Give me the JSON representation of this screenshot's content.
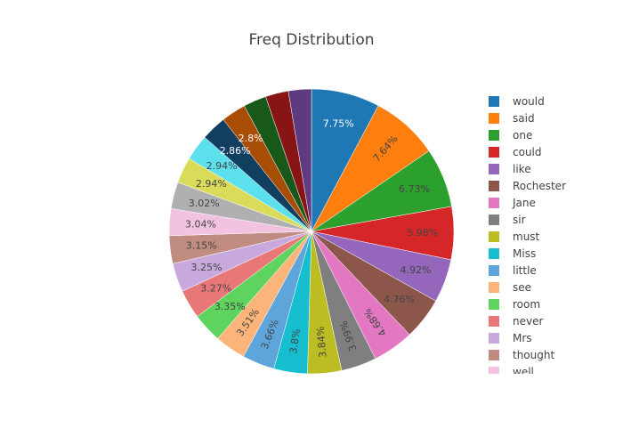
{
  "chart_data": {
    "type": "pie",
    "title": "Freq Distribution",
    "sort": "descending, clockwise from 12 o'clock",
    "legend_position": "right (scrollable, clipped)",
    "slices": [
      {
        "label": "would",
        "percent_text": "7.75%",
        "color": "#1f77b4"
      },
      {
        "label": "said",
        "percent_text": "7.64%",
        "color": "#ff7f0e"
      },
      {
        "label": "one",
        "percent_text": "6.73%",
        "color": "#2ca02c"
      },
      {
        "label": "could",
        "percent_text": "5.98%",
        "color": "#d62728"
      },
      {
        "label": "like",
        "percent_text": "4.92%",
        "color": "#9467bd"
      },
      {
        "label": "Rochester",
        "percent_text": "4.76%",
        "color": "#8c564b"
      },
      {
        "label": "Jane",
        "percent_text": "4.68%",
        "color": "#e377c2"
      },
      {
        "label": "sir",
        "percent_text": "3.99%",
        "color": "#7f7f7f"
      },
      {
        "label": "must",
        "percent_text": "3.84%",
        "color": "#bcbd22"
      },
      {
        "label": "Miss",
        "percent_text": "3.8%",
        "color": "#17becf"
      },
      {
        "label": "little",
        "percent_text": "3.66%",
        "color": "#5da5da"
      },
      {
        "label": "see",
        "percent_text": "3.51%",
        "color": "#fdb47a"
      },
      {
        "label": "room",
        "percent_text": "3.35%",
        "color": "#5ed35e"
      },
      {
        "label": "never",
        "percent_text": "3.27%",
        "color": "#e87878"
      },
      {
        "label": "Mrs",
        "percent_text": "3.25%",
        "color": "#c7a9dd"
      },
      {
        "label": "thought",
        "percent_text": "3.15%",
        "color": "#c08b80"
      },
      {
        "label": "well",
        "percent_text": "3.04%",
        "color": "#f2c2e1"
      },
      {
        "label": "",
        "percent_text": "3.02%",
        "color": "#b0b0b0"
      },
      {
        "label": "",
        "percent_text": "2.94%",
        "color": "#dbdb5a"
      },
      {
        "label": "",
        "percent_text": "2.94%",
        "color": "#5ce0ee"
      },
      {
        "label": "",
        "percent_text": "2.86%",
        "color": "#123e60"
      },
      {
        "label": "",
        "percent_text": "2.8%",
        "color": "#a84d04"
      },
      {
        "label": "",
        "percent_text": "",
        "color": "#185818"
      },
      {
        "label": "",
        "percent_text": "",
        "color": "#881516"
      },
      {
        "label": "",
        "percent_text": "",
        "color": "#5e3a80"
      }
    ],
    "legend_items": [
      "would",
      "said",
      "one",
      "could",
      "like",
      "Rochester",
      "Jane",
      "sir",
      "must",
      "Miss",
      "little",
      "see",
      "room",
      "never",
      "Mrs",
      "thought",
      "well"
    ]
  }
}
